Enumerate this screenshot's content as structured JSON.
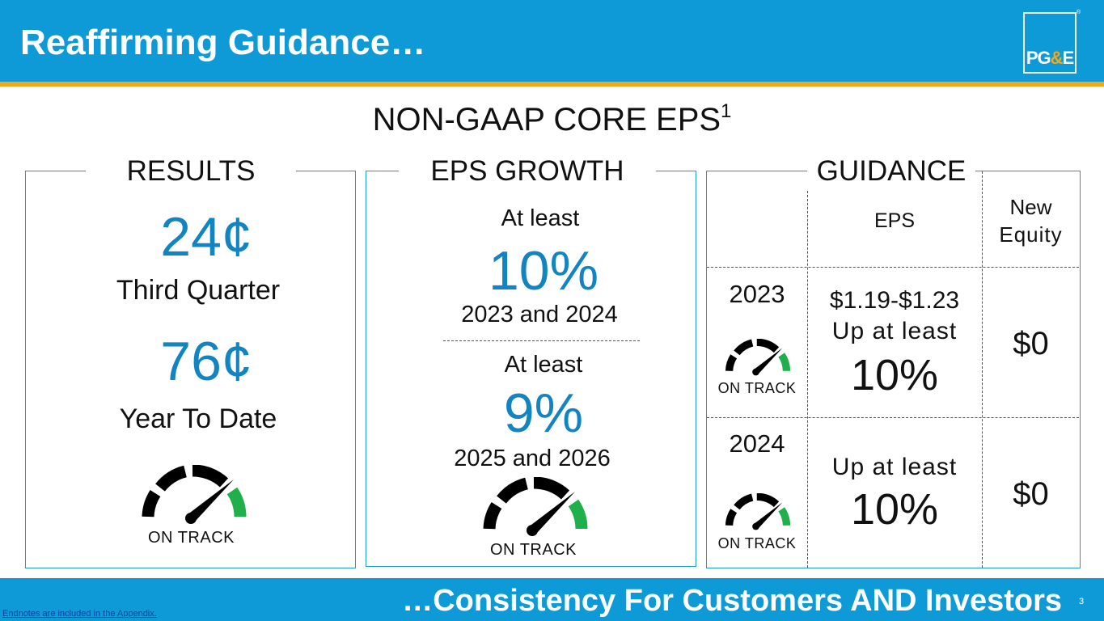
{
  "header": {
    "title": "Reaffirming Guidance…",
    "logo": {
      "prefix": "PG",
      "amp": "&",
      "suffix": "E",
      "mark": "®"
    }
  },
  "subtitle": {
    "text": "NON-GAAP CORE EPS",
    "superscript": "1"
  },
  "results": {
    "label": "RESULTS",
    "quarter_value": "24¢",
    "quarter_label": "Third Quarter",
    "ytd_value": "76¢",
    "ytd_label": "Year To Date",
    "status": "ON TRACK"
  },
  "eps_growth": {
    "label": "EPS GROWTH",
    "first": {
      "prefix": "At least",
      "value": "10%",
      "period": "2023 and 2024"
    },
    "second": {
      "prefix": "At least",
      "value": "9%",
      "period": "2025 and 2026"
    },
    "status": "ON TRACK"
  },
  "guidance": {
    "label": "GUIDANCE",
    "columns": {
      "eps": "EPS",
      "equity_line1": "New",
      "equity_line2": "Equity"
    },
    "rows": [
      {
        "year": "2023",
        "status": "ON TRACK",
        "eps_range": "$1.19-$1.23",
        "eps_prefix": "Up at least",
        "eps_value": "10%",
        "equity": "$0"
      },
      {
        "year": "2024",
        "status": "ON TRACK",
        "eps_prefix": "Up at least",
        "eps_value": "10%",
        "equity": "$0"
      }
    ]
  },
  "footer": {
    "tagline": "…Consistency For Customers AND Investors",
    "page_number": "3",
    "endnote": "Endnotes are included in the Appendix."
  },
  "colors": {
    "brand_blue": "#0d9ad6",
    "accent_orange": "#f2a81d",
    "value_blue": "#1284c2",
    "gauge_green": "#1fb04b"
  }
}
